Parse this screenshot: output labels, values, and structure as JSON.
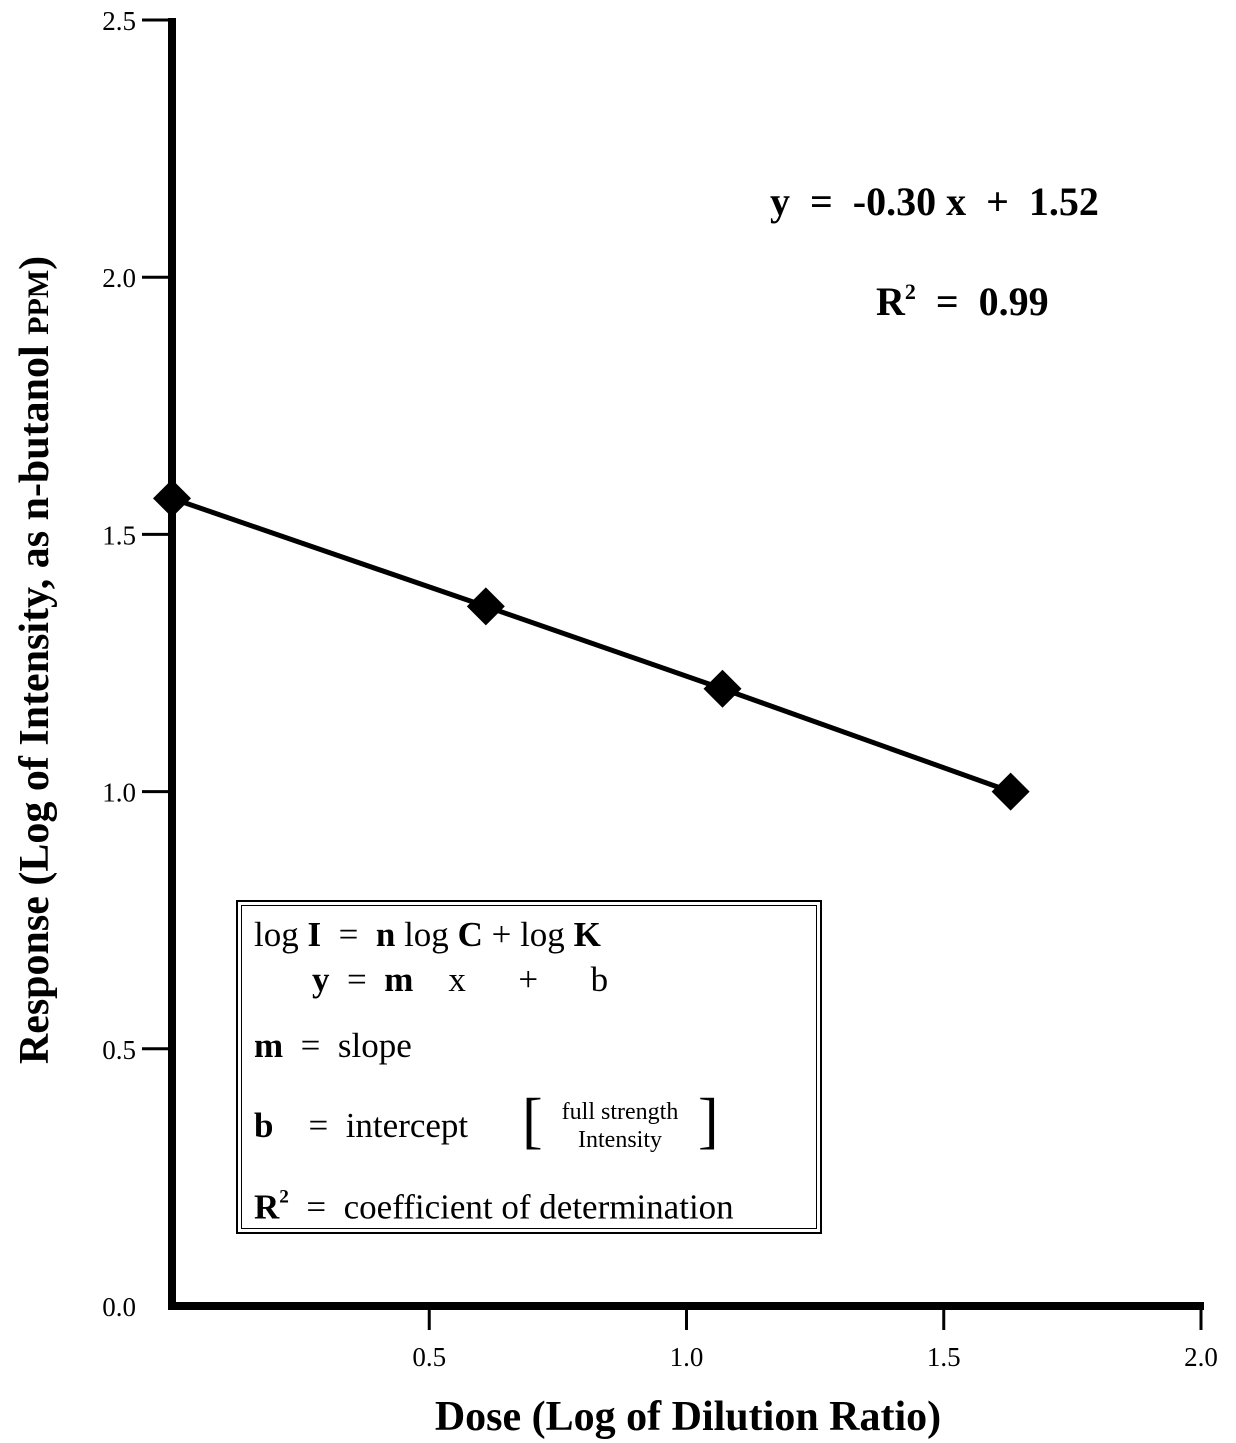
{
  "chart_data": {
    "type": "line",
    "xlabel": "Dose (Log of Dilution Ratio)",
    "ylabel_main": "Response (Log of Intensity, as n-butanol ",
    "ylabel_unit": "PPM",
    "ylabel_close": ")",
    "xlim": [
      0,
      2.0
    ],
    "ylim": [
      0,
      2.5
    ],
    "x_ticks": [
      0.5,
      1.0,
      1.5,
      2.0
    ],
    "x_tick_labels": [
      "0.5",
      "1.0",
      "1.5",
      "2.0"
    ],
    "y_ticks": [
      0.0,
      0.5,
      1.0,
      1.5,
      2.0,
      2.5
    ],
    "y_tick_labels": [
      "0.0",
      "0.5",
      "1.0",
      "1.5",
      "2.0",
      "2.5"
    ],
    "series": [
      {
        "x": [
          0.0,
          0.61,
          1.07,
          1.63
        ],
        "y": [
          1.57,
          1.36,
          1.2,
          1.0
        ],
        "marker": "diamond",
        "color": "#000000"
      }
    ],
    "annotations": {
      "equation": "y  =  -0.30 x  +  1.52",
      "r2_label": "R",
      "r2_sup": "2",
      "r2_value": "  =  0.99"
    }
  },
  "legend": {
    "line1": [
      "log ",
      "I",
      "  =  ",
      "n",
      " log ",
      "C",
      " + log ",
      "K"
    ],
    "line2": [
      "y",
      "  =  ",
      "m",
      "    x      +      b"
    ],
    "slope": [
      "m",
      "  =  slope"
    ],
    "intercept": [
      "b",
      "    =  intercept"
    ],
    "intercept_note_top": "full strength",
    "intercept_note_bottom": "Intensity",
    "r2": [
      "R",
      "2",
      "  =  coefficient of determination"
    ]
  }
}
